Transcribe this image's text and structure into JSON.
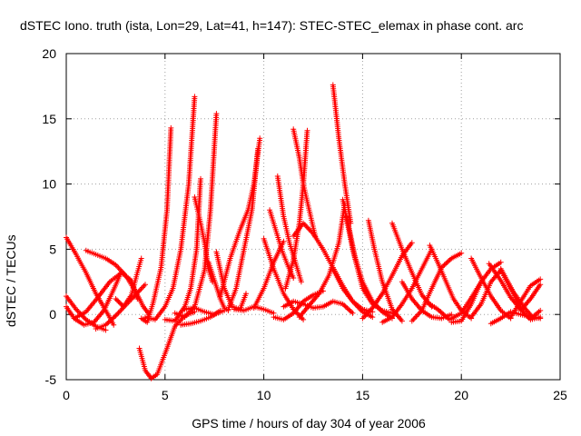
{
  "chart_data": {
    "type": "scatter",
    "title": "dSTEC Iono. truth (ista, Lon=29, Lat=41, h=147): STEC-STEC_elemax in phase cont. arc",
    "xlabel": "GPS time / hours of day 304 of year 2006",
    "ylabel": "dSTEC  / TECUs",
    "xlim": [
      0,
      25
    ],
    "ylim": [
      -5,
      20
    ],
    "xticks": [
      "0",
      "5",
      "10",
      "15",
      "20",
      "25"
    ],
    "yticks": [
      "-5",
      "0",
      "5",
      "10",
      "15",
      "20"
    ],
    "grid": true,
    "marker": "+",
    "color": "#ff0000",
    "series": [
      {
        "x": [
          0.0,
          0.5,
          1.0,
          1.5,
          2.0,
          2.4
        ],
        "values": [
          5.9,
          4.6,
          3.2,
          1.6,
          0.3,
          -0.8
        ]
      },
      {
        "x": [
          0.0,
          0.5,
          1.0,
          1.5,
          2.0
        ],
        "values": [
          1.4,
          0.4,
          -0.4,
          -0.9,
          -1.2
        ]
      },
      {
        "x": [
          0.0,
          0.4,
          0.9,
          1.4,
          1.9,
          2.4,
          2.8
        ],
        "values": [
          0.6,
          -0.3,
          -0.8,
          -0.6,
          0.3,
          1.9,
          3.3
        ]
      },
      {
        "x": [
          0.4,
          1.0,
          1.6,
          2.2,
          2.8,
          3.3,
          3.6
        ],
        "values": [
          -0.3,
          0.2,
          1.3,
          2.5,
          3.2,
          2.6,
          1.2
        ]
      },
      {
        "x": [
          1.0,
          1.5,
          2.0,
          2.5,
          3.0,
          3.5,
          3.9,
          4.2
        ],
        "values": [
          4.9,
          4.6,
          4.3,
          3.8,
          3.0,
          1.8,
          0.6,
          0.0
        ]
      },
      {
        "x": [
          2.5,
          2.9,
          3.3,
          3.6,
          3.8
        ],
        "values": [
          1.2,
          0.6,
          1.5,
          3.2,
          4.3
        ]
      },
      {
        "x": [
          1.5,
          2.0,
          2.5,
          3.0,
          3.5,
          4.0
        ],
        "values": [
          -1.1,
          -0.8,
          -0.1,
          0.7,
          1.5,
          2.3
        ]
      },
      {
        "x": [
          3.7,
          4.0,
          4.3,
          4.6,
          5.0,
          5.5,
          6.0,
          6.5
        ],
        "values": [
          -2.6,
          -4.3,
          -4.9,
          -4.6,
          -3.0,
          -0.9,
          -0.1,
          0.2
        ]
      },
      {
        "x": [
          3.8,
          4.1,
          4.4,
          4.8,
          5.1,
          5.3
        ],
        "values": [
          -0.3,
          -0.6,
          0.9,
          3.6,
          8.0,
          14.3
        ]
      },
      {
        "x": [
          4.0,
          4.5,
          5.0,
          5.4,
          5.8,
          6.2,
          6.5
        ],
        "values": [
          -0.2,
          -0.4,
          0.6,
          2.0,
          5.0,
          10.0,
          16.7
        ]
      },
      {
        "x": [
          5.0,
          5.5,
          6.0,
          6.3,
          6.6,
          6.8
        ],
        "values": [
          -0.4,
          -0.5,
          0.6,
          2.0,
          5.0,
          10.4
        ]
      },
      {
        "x": [
          5.5,
          6.0,
          6.5,
          7.0,
          7.3,
          7.6
        ],
        "values": [
          0.1,
          -0.2,
          0.6,
          3.4,
          8.0,
          15.4
        ]
      },
      {
        "x": [
          6.5,
          6.8,
          7.0,
          7.2,
          7.4
        ],
        "values": [
          9.0,
          7.0,
          5.5,
          3.5,
          2.5
        ]
      },
      {
        "x": [
          7.2,
          7.5,
          7.8,
          8.0,
          8.2
        ],
        "values": [
          4.0,
          2.6,
          1.2,
          0.5,
          0.3
        ]
      },
      {
        "x": [
          5.8,
          6.3,
          6.8,
          7.3,
          7.8
        ],
        "values": [
          -0.8,
          -0.7,
          -0.5,
          -0.2,
          0.3
        ]
      },
      {
        "x": [
          6.0,
          6.5,
          7.0,
          7.5,
          8.0
        ],
        "values": [
          0.4,
          0.5,
          0.2,
          0.0,
          0.3
        ]
      },
      {
        "x": [
          7.6,
          8.0,
          8.4,
          8.8,
          9.1
        ],
        "values": [
          4.8,
          2.0,
          0.6,
          0.4,
          1.6
        ]
      },
      {
        "x": [
          7.8,
          8.3,
          8.8,
          9.2,
          9.5,
          9.8
        ],
        "values": [
          1.4,
          4.3,
          6.5,
          8.0,
          10.0,
          13.5
        ]
      },
      {
        "x": [
          8.2,
          8.6,
          9.0,
          9.4,
          9.7
        ],
        "values": [
          0.4,
          2.0,
          5.0,
          8.0,
          12.7
        ]
      },
      {
        "x": [
          8.5,
          9.0,
          9.5,
          10.0,
          10.5
        ],
        "values": [
          0.4,
          0.3,
          0.6,
          0.4,
          0.1
        ]
      },
      {
        "x": [
          9.5,
          10.0,
          10.5,
          11.0
        ],
        "values": [
          0.5,
          2.0,
          4.0,
          5.6
        ]
      },
      {
        "x": [
          10.0,
          10.5,
          11.0,
          11.5,
          12.0
        ],
        "values": [
          5.8,
          3.5,
          1.6,
          0.4,
          -0.4
        ]
      },
      {
        "x": [
          10.3,
          10.6,
          10.9,
          11.2,
          11.5
        ],
        "values": [
          8.0,
          6.5,
          5.0,
          3.8,
          2.8
        ]
      },
      {
        "x": [
          10.7,
          11.0,
          11.3,
          11.6,
          11.9
        ],
        "values": [
          10.6,
          7.5,
          5.5,
          4.0,
          2.5
        ]
      },
      {
        "x": [
          10.5,
          11.0,
          11.5,
          12.0,
          12.5,
          13.0
        ],
        "values": [
          -0.2,
          -0.4,
          0.1,
          1.0,
          1.5,
          1.8
        ]
      },
      {
        "x": [
          11.5,
          11.8,
          12.0,
          12.3,
          12.6
        ],
        "values": [
          14.2,
          12.0,
          10.0,
          8.0,
          6.0
        ]
      },
      {
        "x": [
          12.2,
          12.0,
          11.8,
          11.5,
          11.1
        ],
        "values": [
          14.1,
          10.0,
          7.0,
          4.2,
          2.0
        ]
      },
      {
        "x": [
          11.0,
          11.5,
          12.0,
          12.5,
          13.0,
          13.5,
          14.0,
          14.5
        ],
        "values": [
          0.6,
          1.0,
          0.8,
          0.5,
          0.6,
          1.0,
          0.8,
          0.1
        ]
      },
      {
        "x": [
          11.5,
          12.0,
          12.5,
          13.0,
          13.5,
          14.0,
          14.5,
          15.0,
          15.5
        ],
        "values": [
          6.0,
          7.0,
          6.2,
          5.0,
          3.6,
          2.2,
          1.0,
          0.2,
          -0.2
        ]
      },
      {
        "x": [
          11.8,
          12.3,
          12.8,
          13.3,
          13.8,
          14.1
        ],
        "values": [
          -0.2,
          0.7,
          1.6,
          3.0,
          5.5,
          8.5
        ]
      },
      {
        "x": [
          13.5,
          13.8,
          14.1,
          14.4
        ],
        "values": [
          17.6,
          13.5,
          10.0,
          7.0
        ]
      },
      {
        "x": [
          14.0,
          14.5,
          15.0,
          15.5,
          16.0,
          16.5
        ],
        "values": [
          8.8,
          5.0,
          2.0,
          0.8,
          0.3,
          0.1
        ]
      },
      {
        "x": [
          14.2,
          14.6,
          15.0,
          15.5,
          16.0,
          16.5
        ],
        "values": [
          7.5,
          4.5,
          2.5,
          1.0,
          0.2,
          -0.3
        ]
      },
      {
        "x": [
          13.5,
          14.0,
          14.5,
          15.0,
          15.5
        ],
        "values": [
          3.5,
          2.0,
          1.0,
          0.4,
          0.2
        ]
      },
      {
        "x": [
          15.3,
          15.6,
          16.0,
          16.5,
          17.0
        ],
        "values": [
          7.2,
          5.0,
          2.5,
          0.4,
          -0.5
        ]
      },
      {
        "x": [
          15.0,
          15.5,
          16.0,
          16.5,
          17.0,
          17.5
        ],
        "values": [
          -0.3,
          0.5,
          1.6,
          3.0,
          4.5,
          5.5
        ]
      },
      {
        "x": [
          16.5,
          17.0,
          17.5,
          18.0,
          18.5
        ],
        "values": [
          7.0,
          5.0,
          3.2,
          1.5,
          0.6
        ]
      },
      {
        "x": [
          16.0,
          16.5,
          17.0,
          17.5,
          18.0,
          18.5
        ],
        "values": [
          -0.6,
          -0.2,
          0.8,
          2.0,
          3.5,
          5.0
        ]
      },
      {
        "x": [
          17.0,
          17.5,
          18.0,
          18.5,
          19.0,
          19.5
        ],
        "values": [
          2.5,
          1.2,
          0.3,
          -0.2,
          -0.3,
          0.0
        ]
      },
      {
        "x": [
          17.5,
          18.0,
          18.5,
          19.0,
          19.5,
          20.0
        ],
        "values": [
          -0.5,
          0.3,
          2.0,
          3.6,
          4.3,
          4.7
        ]
      },
      {
        "x": [
          18.4,
          18.8,
          19.2,
          19.6,
          20.0,
          20.5
        ],
        "values": [
          5.3,
          4.0,
          2.6,
          1.2,
          0.3,
          -0.3
        ]
      },
      {
        "x": [
          18.2,
          18.8,
          19.4,
          20.0,
          20.6,
          21.0
        ],
        "values": [
          1.0,
          0.4,
          -0.4,
          0.1,
          1.5,
          2.5
        ]
      },
      {
        "x": [
          19.5,
          20.0,
          20.5,
          21.0,
          21.5,
          22.0
        ],
        "values": [
          -0.6,
          -0.5,
          0.8,
          2.5,
          3.5,
          4.0
        ]
      },
      {
        "x": [
          20.5,
          21.0,
          21.5,
          22.0,
          22.5,
          23.0
        ],
        "values": [
          -0.2,
          0.8,
          2.5,
          3.4,
          2.0,
          0.5
        ]
      },
      {
        "x": [
          20.5,
          21.0,
          21.5,
          22.0,
          22.5
        ],
        "values": [
          4.3,
          2.8,
          1.4,
          0.3,
          -0.3
        ]
      },
      {
        "x": [
          21.4,
          22.0,
          22.5,
          23.0,
          23.5,
          24.0
        ],
        "values": [
          3.9,
          2.6,
          1.3,
          0.4,
          -0.4,
          -0.2
        ]
      },
      {
        "x": [
          22.0,
          22.6,
          23.2,
          23.6,
          24.0
        ],
        "values": [
          3.5,
          1.8,
          0.5,
          -0.2,
          0.3
        ]
      },
      {
        "x": [
          21.5,
          22.0,
          22.5,
          23.0,
          23.5,
          24.0
        ],
        "values": [
          -0.7,
          -0.3,
          0.2,
          0.0,
          -0.2,
          -0.3
        ]
      },
      {
        "x": [
          22.5,
          23.0,
          23.5,
          24.0
        ],
        "values": [
          -0.2,
          1.0,
          2.2,
          2.7
        ]
      },
      {
        "x": [
          23.0,
          23.5,
          24.0
        ],
        "values": [
          0.3,
          1.2,
          2.3
        ]
      }
    ]
  }
}
